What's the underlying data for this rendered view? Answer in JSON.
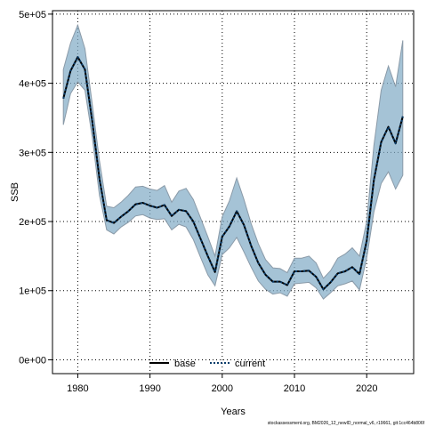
{
  "chart_data": {
    "type": "line",
    "xlabel": "Years",
    "ylabel": "SSB",
    "xlim": [
      1976.5,
      2026.5
    ],
    "ylim": [
      -20000,
      505000
    ],
    "x_ticks": [
      1980,
      1990,
      2000,
      2010,
      2020
    ],
    "x_tick_labels": [
      "1980",
      "1990",
      "2000",
      "2010",
      "2020"
    ],
    "y_ticks": [
      0,
      100000,
      200000,
      300000,
      400000,
      500000
    ],
    "y_tick_labels": [
      "0e+00",
      "1e+05",
      "2e+05",
      "3e+05",
      "4e+05",
      "5e+05"
    ],
    "grid": true,
    "legend_position": "bottom-center",
    "colors": {
      "band": "#7fa9c4",
      "band_edge": "#8a9aa8",
      "base": "#000000",
      "current": "#0a3d6b"
    },
    "x": [
      1978,
      1979,
      1980,
      1981,
      1982,
      1983,
      1984,
      1985,
      1986,
      1987,
      1988,
      1989,
      1990,
      1991,
      1992,
      1993,
      1994,
      1995,
      1996,
      1997,
      1998,
      1999,
      2000,
      2001,
      2002,
      2003,
      2004,
      2005,
      2006,
      2007,
      2008,
      2009,
      2010,
      2011,
      2012,
      2013,
      2014,
      2015,
      2016,
      2017,
      2018,
      2019,
      2020,
      2021,
      2022,
      2023,
      2024,
      2025
    ],
    "series": [
      {
        "name": "base",
        "style": "solid",
        "values": [
          378000,
          418000,
          438000,
          420000,
          345000,
          262000,
          202000,
          198000,
          207000,
          215000,
          225000,
          227000,
          223000,
          220000,
          224000,
          208000,
          217000,
          215000,
          200000,
          175000,
          150000,
          127000,
          178000,
          193000,
          215000,
          195000,
          165000,
          140000,
          123000,
          113000,
          113000,
          108000,
          128000,
          128000,
          129000,
          120000,
          102000,
          112000,
          125000,
          128000,
          134000,
          124000,
          172000,
          260000,
          315000,
          337000,
          313000,
          352000
        ]
      },
      {
        "name": "current",
        "style": "dotted",
        "values": [
          378000,
          418000,
          438000,
          420000,
          345000,
          262000,
          202000,
          198000,
          207000,
          215000,
          225000,
          227000,
          223000,
          220000,
          224000,
          208000,
          217000,
          215000,
          200000,
          175000,
          150000,
          127000,
          178000,
          193000,
          215000,
          195000,
          165000,
          140000,
          123000,
          113000,
          113000,
          108000,
          128000,
          128000,
          129000,
          120000,
          102000,
          112000,
          125000,
          128000,
          134000,
          124000,
          172000,
          260000,
          315000,
          337000,
          313000,
          352000
        ]
      }
    ],
    "band": {
      "lower": [
        340000,
        385000,
        402000,
        390000,
        322000,
        238000,
        188000,
        182000,
        192000,
        199000,
        208000,
        210000,
        205000,
        203000,
        204000,
        188000,
        196000,
        192000,
        174000,
        148000,
        123000,
        107000,
        152000,
        162000,
        177000,
        156000,
        134000,
        114000,
        102000,
        95000,
        97000,
        92000,
        110000,
        111000,
        112000,
        104000,
        88000,
        97000,
        107000,
        110000,
        114000,
        101000,
        147000,
        214000,
        255000,
        272000,
        247000,
        267000
      ],
      "upper": [
        420000,
        458000,
        484000,
        450000,
        370000,
        288000,
        222000,
        220000,
        228000,
        238000,
        250000,
        251000,
        247000,
        245000,
        252000,
        228000,
        244000,
        248000,
        232000,
        205000,
        178000,
        150000,
        207000,
        230000,
        263000,
        232000,
        197000,
        168000,
        145000,
        133000,
        132000,
        126000,
        147000,
        147000,
        150000,
        140000,
        118000,
        129000,
        147000,
        153000,
        162000,
        150000,
        200000,
        310000,
        390000,
        425000,
        395000,
        462000
      ]
    }
  },
  "legend": {
    "base_label": "base",
    "current_label": "current"
  },
  "footer": "stockassessment.org, BM2026_12_newID_normal_v6, r19661, git:1cc464b806f"
}
